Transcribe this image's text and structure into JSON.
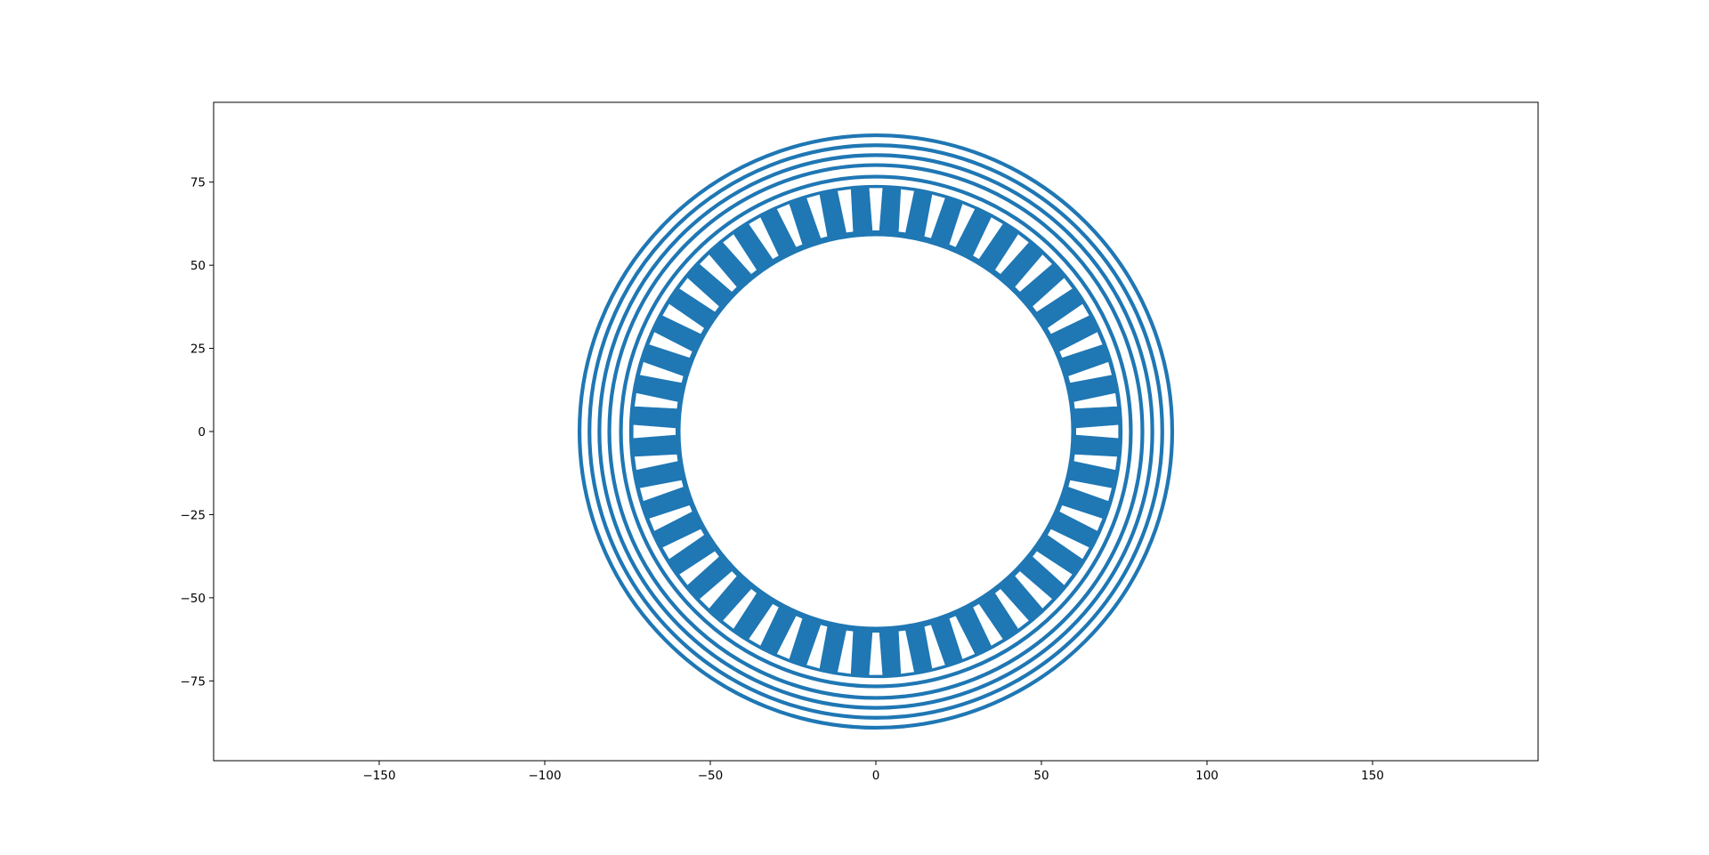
{
  "chart_data": {
    "type": "line",
    "title": "",
    "xlabel": "",
    "ylabel": "",
    "xlim": [
      -200,
      200
    ],
    "ylim": [
      -99,
      99
    ],
    "aspect": "equal",
    "grid": false,
    "legend": "none",
    "x_ticks": [
      -150,
      -100,
      -50,
      0,
      50,
      100,
      150
    ],
    "y_ticks": [
      -75,
      -50,
      -25,
      0,
      25,
      50,
      75
    ],
    "x_tick_labels": [
      "−150",
      "−100",
      "−50",
      "0",
      "50",
      "100",
      "150"
    ],
    "y_tick_labels": [
      "−75",
      "−50",
      "−25",
      "0",
      "25",
      "50",
      "75"
    ],
    "series_color": "#1f77b4",
    "outer_rings": {
      "radii": [
        89.5,
        86.5,
        83.5,
        80.5,
        77.0
      ],
      "description": "concentric circles centered at origin"
    },
    "slotted_ring": {
      "inner_radius": 59.0,
      "outer_radius": 74.5,
      "slot_count": 48,
      "first_slot_angle_deg": 0,
      "slot_opening_width": 2.2,
      "slot_base_width": 4.2
    }
  }
}
